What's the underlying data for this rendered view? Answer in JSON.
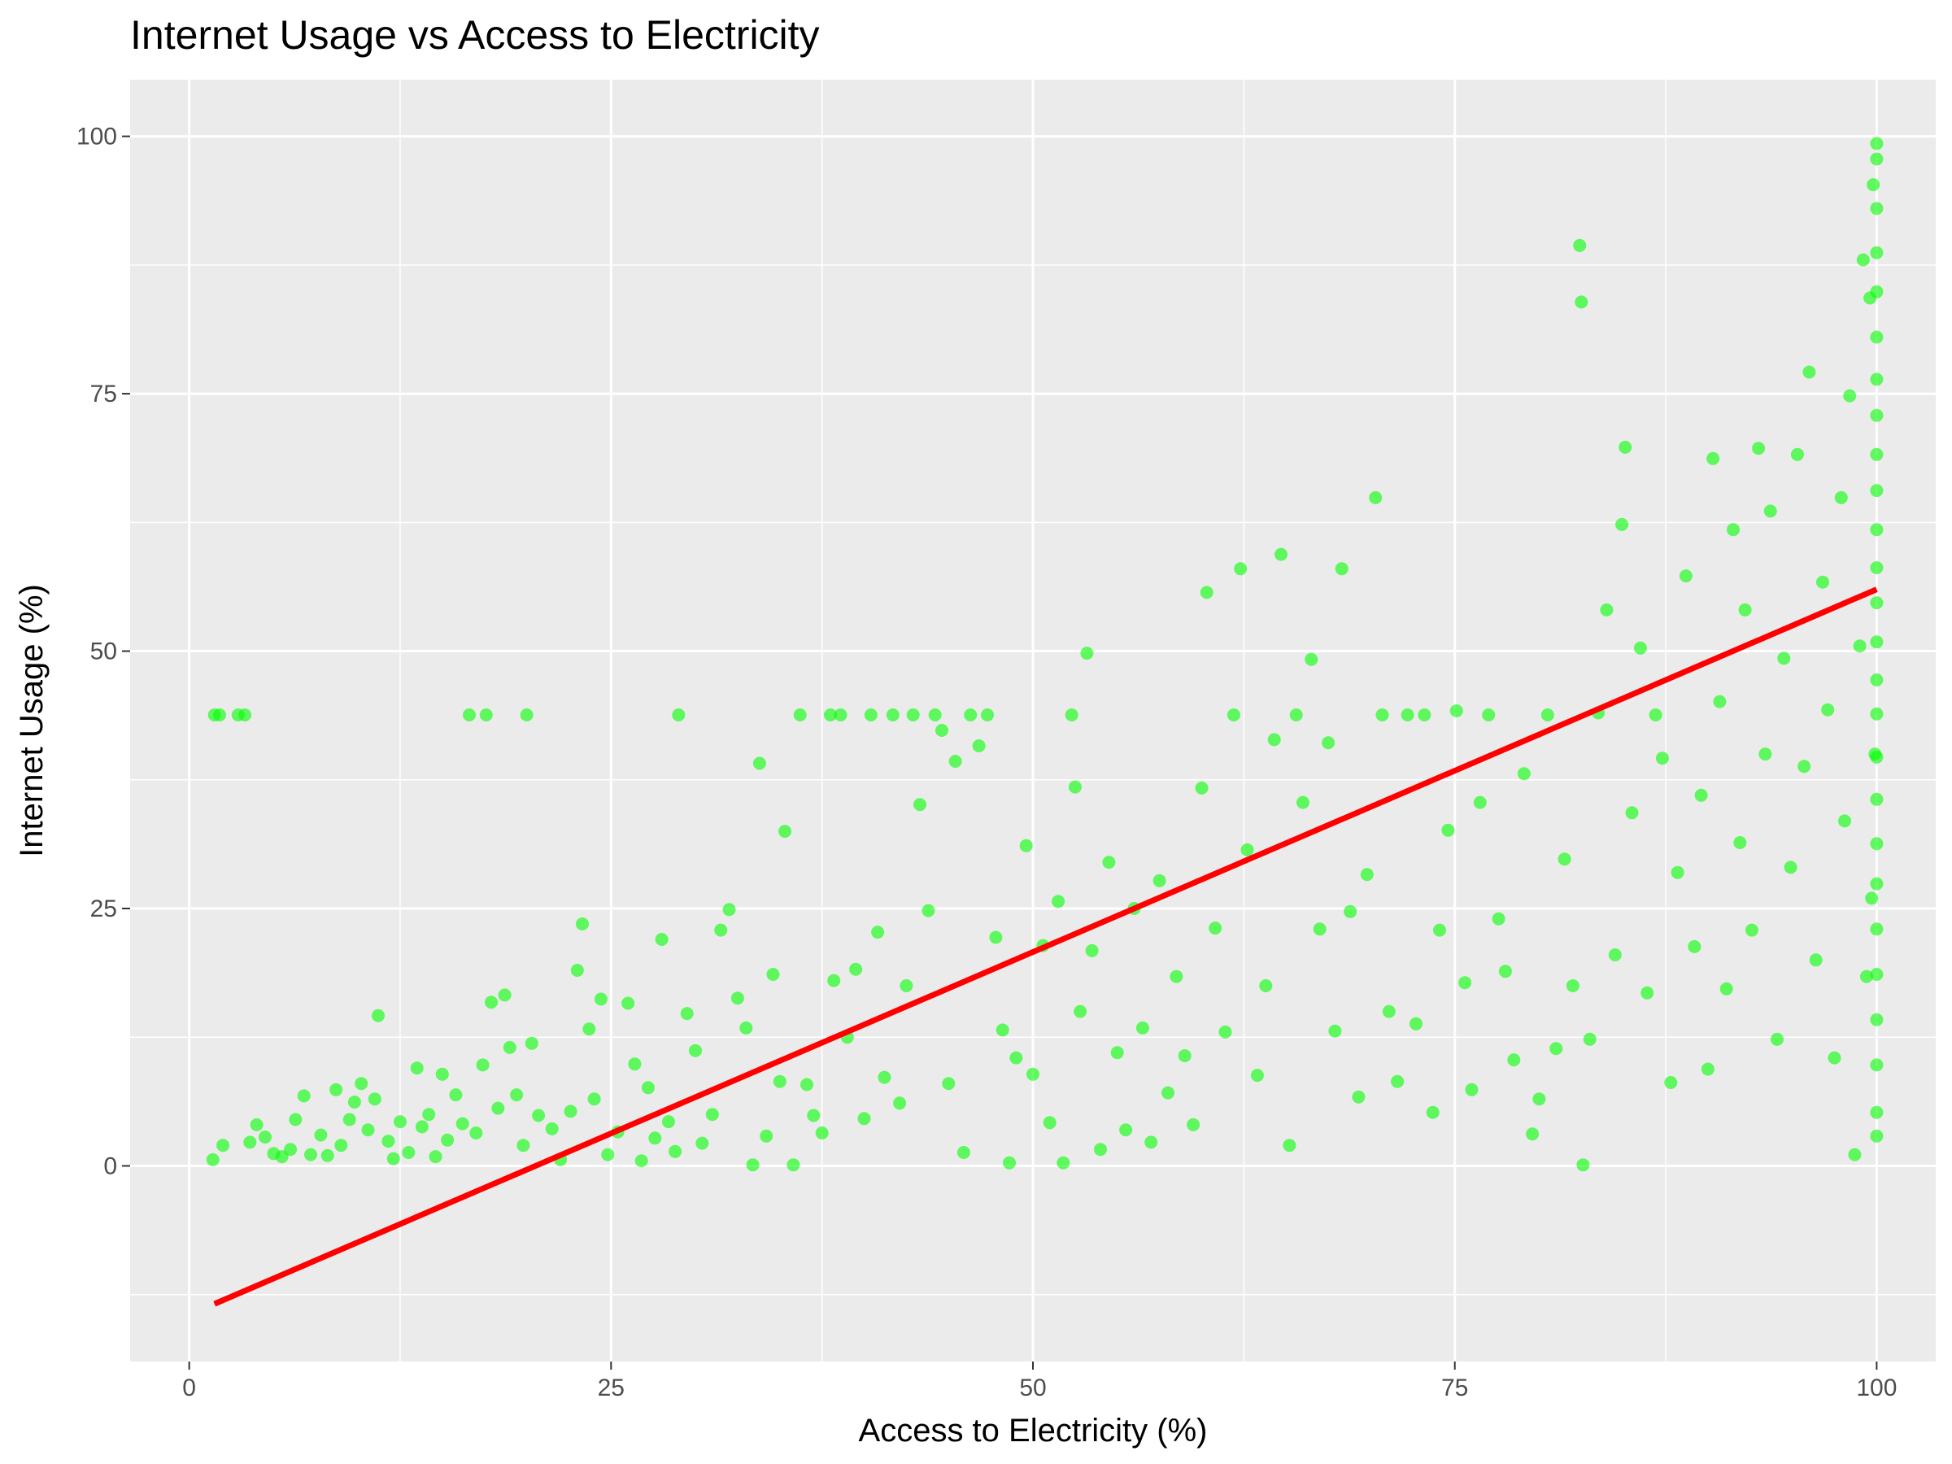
{
  "chart_data": {
    "type": "scatter",
    "title": "Internet Usage vs Access to Electricity",
    "xlabel": "Access to Electricity (%)",
    "ylabel": "Internet Usage (%)",
    "xlim": [
      -3.5,
      103.5
    ],
    "ylim": [
      -19,
      105.5
    ],
    "x_ticks": [
      0,
      25,
      50,
      75,
      100
    ],
    "x_tick_labels": [
      "0",
      "25",
      "50",
      "75",
      "100"
    ],
    "y_ticks": [
      0,
      25,
      50,
      75,
      100
    ],
    "y_tick_labels": [
      "0",
      "25",
      "50",
      "75",
      "100"
    ],
    "grid": true,
    "legend": "none",
    "colors": {
      "points": "#00ff00",
      "trend_line": "#ff0000",
      "panel_background": "#ebebeb",
      "grid": "#ffffff"
    },
    "trend_line": {
      "x": [
        1.5,
        100
      ],
      "y": [
        -13.4,
        56.0
      ]
    },
    "series": [
      {
        "values": [
          [
            1.5,
            43.8
          ],
          [
            1.8,
            43.8
          ],
          [
            2.9,
            43.8
          ],
          [
            3.3,
            43.8
          ],
          [
            1.4,
            0.6
          ],
          [
            2.0,
            2.0
          ],
          [
            3.6,
            2.3
          ],
          [
            4.0,
            4.0
          ],
          [
            4.5,
            2.8
          ],
          [
            5.0,
            1.2
          ],
          [
            5.5,
            0.9
          ],
          [
            6.0,
            1.6
          ],
          [
            6.3,
            4.5
          ],
          [
            6.8,
            6.8
          ],
          [
            7.2,
            1.1
          ],
          [
            7.8,
            3.0
          ],
          [
            8.2,
            1.0
          ],
          [
            8.7,
            7.4
          ],
          [
            9.0,
            2.0
          ],
          [
            9.5,
            4.5
          ],
          [
            9.8,
            6.2
          ],
          [
            10.2,
            8.0
          ],
          [
            10.6,
            3.5
          ],
          [
            11.0,
            6.5
          ],
          [
            11.2,
            14.6
          ],
          [
            11.8,
            2.4
          ],
          [
            12.1,
            0.7
          ],
          [
            12.5,
            4.3
          ],
          [
            13.0,
            1.3
          ],
          [
            13.5,
            9.5
          ],
          [
            13.8,
            3.8
          ],
          [
            14.2,
            5.0
          ],
          [
            14.6,
            0.9
          ],
          [
            15.0,
            8.9
          ],
          [
            15.3,
            2.5
          ],
          [
            15.8,
            6.9
          ],
          [
            16.2,
            4.1
          ],
          [
            16.6,
            43.8
          ],
          [
            17.0,
            3.2
          ],
          [
            17.4,
            9.8
          ],
          [
            17.6,
            43.8
          ],
          [
            17.9,
            15.9
          ],
          [
            18.3,
            5.6
          ],
          [
            18.7,
            16.6
          ],
          [
            19.0,
            11.5
          ],
          [
            19.4,
            6.9
          ],
          [
            19.8,
            2.0
          ],
          [
            20.0,
            43.8
          ],
          [
            20.3,
            11.9
          ],
          [
            20.7,
            4.9
          ],
          [
            21.5,
            3.6
          ],
          [
            22.0,
            0.6
          ],
          [
            22.6,
            5.3
          ],
          [
            23.0,
            19.0
          ],
          [
            23.3,
            23.5
          ],
          [
            23.7,
            13.3
          ],
          [
            24.0,
            6.5
          ],
          [
            24.4,
            16.2
          ],
          [
            24.8,
            1.1
          ],
          [
            25.4,
            3.3
          ],
          [
            26.0,
            15.8
          ],
          [
            26.4,
            9.9
          ],
          [
            26.8,
            0.5
          ],
          [
            27.2,
            7.6
          ],
          [
            27.6,
            2.7
          ],
          [
            28.0,
            22.0
          ],
          [
            28.4,
            4.3
          ],
          [
            28.8,
            1.4
          ],
          [
            29.0,
            43.8
          ],
          [
            29.5,
            14.8
          ],
          [
            30.0,
            11.2
          ],
          [
            30.4,
            2.2
          ],
          [
            31.0,
            5.0
          ],
          [
            31.5,
            22.9
          ],
          [
            32.0,
            24.9
          ],
          [
            32.5,
            16.3
          ],
          [
            33.0,
            13.4
          ],
          [
            33.4,
            0.1
          ],
          [
            33.8,
            39.1
          ],
          [
            34.2,
            2.9
          ],
          [
            34.6,
            18.6
          ],
          [
            35.0,
            8.2
          ],
          [
            35.3,
            32.5
          ],
          [
            35.8,
            0.1
          ],
          [
            36.2,
            43.8
          ],
          [
            36.6,
            7.9
          ],
          [
            37.0,
            4.9
          ],
          [
            37.5,
            3.2
          ],
          [
            38.0,
            43.8
          ],
          [
            38.2,
            18.0
          ],
          [
            38.6,
            43.8
          ],
          [
            39.0,
            12.5
          ],
          [
            39.5,
            19.1
          ],
          [
            40.0,
            4.6
          ],
          [
            40.4,
            43.8
          ],
          [
            40.8,
            22.7
          ],
          [
            41.2,
            8.6
          ],
          [
            41.7,
            43.8
          ],
          [
            42.1,
            6.1
          ],
          [
            42.5,
            17.5
          ],
          [
            42.9,
            43.8
          ],
          [
            43.3,
            35.1
          ],
          [
            43.8,
            24.8
          ],
          [
            44.2,
            43.8
          ],
          [
            44.6,
            42.3
          ],
          [
            45.0,
            8.0
          ],
          [
            45.4,
            39.3
          ],
          [
            45.9,
            1.3
          ],
          [
            46.3,
            43.8
          ],
          [
            46.8,
            40.8
          ],
          [
            47.3,
            43.8
          ],
          [
            47.8,
            22.2
          ],
          [
            48.2,
            13.2
          ],
          [
            48.6,
            0.3
          ],
          [
            49.0,
            10.5
          ],
          [
            49.6,
            31.1
          ],
          [
            50.0,
            8.9
          ],
          [
            50.6,
            21.4
          ],
          [
            51.0,
            4.2
          ],
          [
            51.5,
            25.7
          ],
          [
            51.8,
            0.3
          ],
          [
            52.3,
            43.8
          ],
          [
            52.5,
            36.8
          ],
          [
            52.8,
            15.0
          ],
          [
            53.2,
            49.8
          ],
          [
            53.5,
            20.9
          ],
          [
            54.0,
            1.6
          ],
          [
            54.5,
            29.5
          ],
          [
            55.0,
            11.0
          ],
          [
            55.5,
            3.5
          ],
          [
            56.0,
            25.0
          ],
          [
            56.5,
            13.4
          ],
          [
            57.0,
            2.3
          ],
          [
            57.5,
            27.7
          ],
          [
            58.0,
            7.1
          ],
          [
            58.5,
            18.4
          ],
          [
            59.0,
            10.7
          ],
          [
            59.5,
            4.0
          ],
          [
            60.0,
            36.7
          ],
          [
            60.3,
            55.7
          ],
          [
            60.8,
            23.1
          ],
          [
            61.4,
            13.0
          ],
          [
            61.9,
            43.8
          ],
          [
            62.3,
            58.0
          ],
          [
            62.7,
            30.7
          ],
          [
            63.3,
            8.8
          ],
          [
            63.8,
            17.5
          ],
          [
            64.3,
            41.4
          ],
          [
            64.7,
            59.4
          ],
          [
            65.2,
            2.0
          ],
          [
            65.6,
            43.8
          ],
          [
            66.0,
            35.3
          ],
          [
            66.5,
            49.2
          ],
          [
            67.0,
            23.0
          ],
          [
            67.5,
            41.1
          ],
          [
            67.9,
            13.1
          ],
          [
            68.3,
            58.0
          ],
          [
            68.8,
            24.7
          ],
          [
            69.3,
            6.7
          ],
          [
            69.8,
            28.3
          ],
          [
            70.3,
            64.9
          ],
          [
            70.7,
            43.8
          ],
          [
            71.1,
            15.0
          ],
          [
            71.6,
            8.2
          ],
          [
            72.2,
            43.8
          ],
          [
            72.7,
            13.8
          ],
          [
            73.2,
            43.8
          ],
          [
            73.7,
            5.2
          ],
          [
            74.1,
            22.9
          ],
          [
            74.6,
            32.6
          ],
          [
            75.1,
            44.2
          ],
          [
            75.6,
            17.8
          ],
          [
            76.0,
            7.4
          ],
          [
            76.5,
            35.3
          ],
          [
            77.0,
            43.8
          ],
          [
            77.6,
            24.0
          ],
          [
            78.0,
            18.9
          ],
          [
            78.5,
            10.3
          ],
          [
            79.1,
            38.1
          ],
          [
            79.6,
            3.1
          ],
          [
            80.0,
            6.5
          ],
          [
            80.5,
            43.8
          ],
          [
            81.0,
            11.4
          ],
          [
            81.5,
            29.8
          ],
          [
            82.0,
            17.5
          ],
          [
            82.4,
            89.4
          ],
          [
            82.5,
            83.9
          ],
          [
            82.6,
            0.1
          ],
          [
            83.0,
            12.3
          ],
          [
            83.5,
            44.0
          ],
          [
            84.0,
            54.0
          ],
          [
            84.5,
            20.5
          ],
          [
            84.9,
            62.3
          ],
          [
            85.1,
            69.8
          ],
          [
            85.5,
            34.3
          ],
          [
            86.0,
            50.3
          ],
          [
            86.4,
            16.8
          ],
          [
            86.9,
            43.8
          ],
          [
            87.3,
            39.6
          ],
          [
            87.8,
            8.1
          ],
          [
            88.2,
            28.5
          ],
          [
            88.7,
            57.3
          ],
          [
            89.2,
            21.3
          ],
          [
            89.6,
            36.0
          ],
          [
            90.0,
            9.4
          ],
          [
            90.3,
            68.7
          ],
          [
            90.7,
            45.1
          ],
          [
            91.1,
            17.2
          ],
          [
            91.5,
            61.8
          ],
          [
            91.9,
            31.4
          ],
          [
            92.2,
            54.0
          ],
          [
            92.6,
            22.9
          ],
          [
            93.0,
            69.7
          ],
          [
            93.4,
            40.0
          ],
          [
            93.7,
            63.6
          ],
          [
            94.1,
            12.3
          ],
          [
            94.5,
            49.3
          ],
          [
            94.9,
            29.0
          ],
          [
            95.3,
            69.1
          ],
          [
            95.7,
            38.8
          ],
          [
            96.0,
            77.1
          ],
          [
            96.4,
            20.0
          ],
          [
            96.8,
            56.7
          ],
          [
            97.1,
            44.3
          ],
          [
            97.5,
            10.5
          ],
          [
            97.9,
            64.9
          ],
          [
            98.1,
            33.5
          ],
          [
            98.4,
            74.8
          ],
          [
            98.7,
            1.1
          ],
          [
            99.0,
            50.5
          ],
          [
            99.2,
            88.0
          ],
          [
            99.4,
            18.4
          ],
          [
            99.6,
            84.3
          ],
          [
            99.7,
            26.0
          ],
          [
            99.8,
            95.3
          ],
          [
            99.9,
            40.0
          ],
          [
            100.0,
            99.3
          ],
          [
            100.0,
            97.8
          ],
          [
            100.0,
            93.0
          ],
          [
            100.0,
            88.7
          ],
          [
            100.0,
            84.9
          ],
          [
            100.0,
            80.5
          ],
          [
            100.0,
            76.4
          ],
          [
            100.0,
            72.9
          ],
          [
            100.0,
            69.1
          ],
          [
            100.0,
            65.6
          ],
          [
            100.0,
            61.8
          ],
          [
            100.0,
            58.1
          ],
          [
            100.0,
            54.7
          ],
          [
            100.0,
            50.9
          ],
          [
            100.0,
            47.2
          ],
          [
            100.0,
            43.9
          ],
          [
            100.0,
            39.7
          ],
          [
            100.0,
            35.6
          ],
          [
            100.0,
            31.3
          ],
          [
            100.0,
            27.4
          ],
          [
            100.0,
            23.0
          ],
          [
            100.0,
            18.6
          ],
          [
            100.0,
            14.2
          ],
          [
            100.0,
            9.8
          ],
          [
            100.0,
            5.2
          ],
          [
            100.0,
            2.9
          ]
        ]
      }
    ]
  }
}
